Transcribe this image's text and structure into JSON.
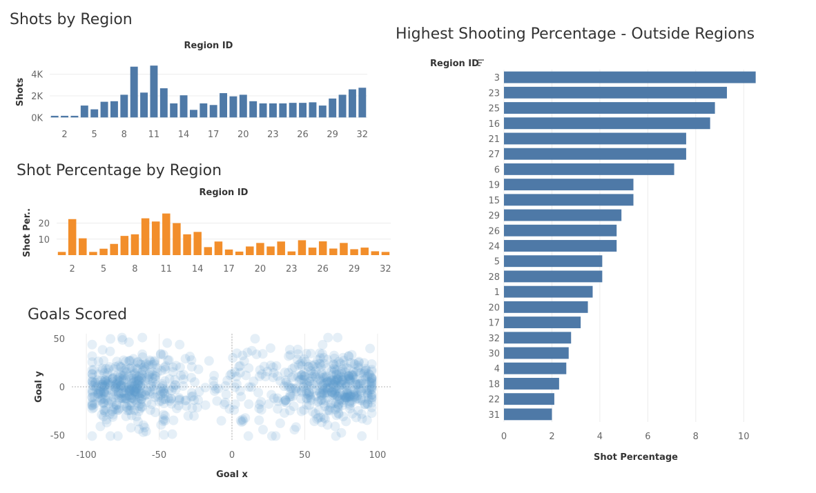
{
  "dashboard": {
    "shots_title": "Shots by Region",
    "shotpct_title": "Shot Percentage by Region",
    "goals_title": "Goals Scored",
    "outside_title": "Highest Shooting Percentage - Outside Regions"
  },
  "colors": {
    "blue": "#4e79a7",
    "orange": "#f28e2b",
    "scatter": "#5b9bd0"
  },
  "chart_data": [
    {
      "id": "shots",
      "type": "bar",
      "title": "Shots by Region",
      "xlabel": "Region ID",
      "ylabel": "Shots",
      "categories": [
        1,
        2,
        3,
        4,
        5,
        6,
        7,
        8,
        9,
        10,
        11,
        12,
        13,
        14,
        15,
        16,
        17,
        18,
        19,
        20,
        21,
        22,
        23,
        24,
        25,
        26,
        27,
        28,
        29,
        30,
        31,
        32
      ],
      "values": [
        150,
        150,
        150,
        1100,
        750,
        1450,
        1500,
        2100,
        4700,
        2300,
        4800,
        2700,
        1300,
        2050,
        700,
        1300,
        1150,
        2250,
        1950,
        2100,
        1500,
        1300,
        1300,
        1300,
        1350,
        1350,
        1400,
        1100,
        1750,
        2100,
        2600,
        2750
      ],
      "xticks": [
        2,
        5,
        8,
        11,
        14,
        17,
        20,
        23,
        26,
        29,
        32
      ],
      "yticks": [
        0,
        2000,
        4000
      ],
      "ytick_labels": [
        "0K",
        "2K",
        "4K"
      ],
      "ylim": [
        -300,
        5000
      ],
      "color": "#4e79a7"
    },
    {
      "id": "shotpct",
      "type": "bar",
      "title": "Shot Percentage by Region",
      "xlabel": "Region ID",
      "ylabel": "Shot Per..",
      "categories": [
        1,
        2,
        3,
        4,
        5,
        6,
        7,
        8,
        9,
        10,
        11,
        12,
        13,
        14,
        15,
        16,
        17,
        18,
        19,
        20,
        21,
        22,
        23,
        24,
        25,
        26,
        27,
        28,
        29,
        30,
        31,
        32
      ],
      "values": [
        2,
        22.5,
        10.5,
        2,
        4,
        7,
        12,
        13,
        23,
        21,
        26,
        20,
        13,
        14.5,
        5,
        8.5,
        3.5,
        2.2,
        5.4,
        7.6,
        5.4,
        8.5,
        2.3,
        9.3,
        4.7,
        8.6,
        4.1,
        7.6,
        3.7,
        4.7,
        2.4,
        2.0
      ],
      "xticks": [
        2,
        5,
        8,
        11,
        14,
        17,
        20,
        23,
        26,
        29,
        32
      ],
      "yticks": [
        10,
        20
      ],
      "ytick_labels": [
        "10",
        "20"
      ],
      "ylim": [
        0,
        28
      ],
      "color": "#f28e2b"
    },
    {
      "id": "goals",
      "type": "scatter",
      "title": "Goals Scored",
      "xlabel": "Goal x",
      "ylabel": "Goal y",
      "xticks": [
        -100,
        -50,
        0,
        50,
        100
      ],
      "yticks": [
        50,
        0,
        -50
      ],
      "xlim": [
        -110,
        110
      ],
      "ylim": [
        -55,
        55
      ],
      "clusters": [
        {
          "cx": -75,
          "cy": 0,
          "sx": 16,
          "sy": 15,
          "n": 260
        },
        {
          "cx": 75,
          "cy": 0,
          "sx": 16,
          "sy": 15,
          "n": 260
        },
        {
          "cx": -55,
          "cy": 0,
          "sx": 22,
          "sy": 22,
          "n": 180
        },
        {
          "cx": 55,
          "cy": 0,
          "sx": 22,
          "sy": 22,
          "n": 180
        },
        {
          "cx": 0,
          "cy": 0,
          "sx": 15,
          "sy": 24,
          "n": 40
        }
      ],
      "color": "#5b9bd0"
    },
    {
      "id": "outside",
      "type": "bar",
      "orientation": "horizontal",
      "title": "Highest Shooting Percentage - Outside Regions",
      "xlabel": "Shot Percentage",
      "ylabel": "Region ID",
      "categories": [
        "3",
        "23",
        "25",
        "16",
        "21",
        "27",
        "6",
        "19",
        "15",
        "29",
        "26",
        "24",
        "5",
        "28",
        "1",
        "20",
        "17",
        "32",
        "30",
        "4",
        "18",
        "22",
        "31"
      ],
      "values": [
        10.5,
        9.3,
        8.8,
        8.6,
        7.6,
        7.6,
        7.1,
        5.4,
        5.4,
        4.9,
        4.7,
        4.7,
        4.1,
        4.1,
        3.7,
        3.5,
        3.2,
        2.8,
        2.7,
        2.6,
        2.3,
        2.1,
        2.0
      ],
      "xticks": [
        0,
        2,
        4,
        6,
        8,
        10
      ],
      "xlim": [
        0,
        11
      ],
      "color": "#4e79a7"
    }
  ]
}
